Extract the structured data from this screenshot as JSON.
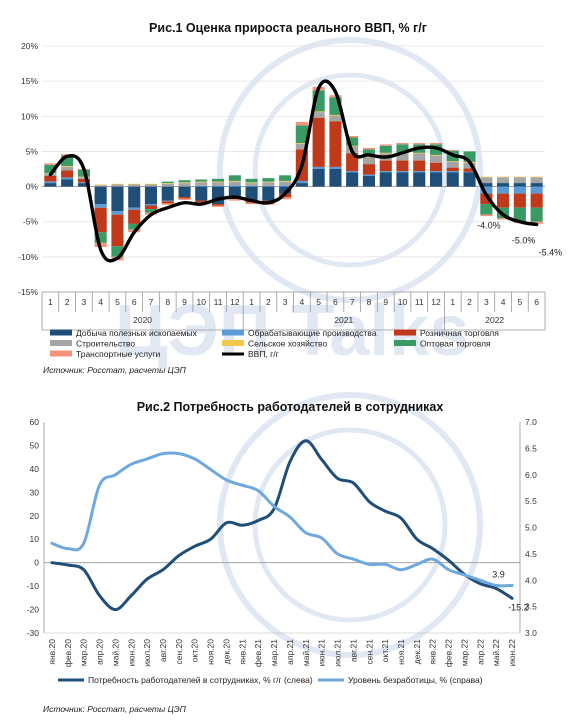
{
  "watermark": {
    "text": "ЦЭП Talks",
    "color": "#c9d6ea"
  },
  "chart_data": [
    {
      "type": "bar",
      "title": "Рис.1 Оценка прироста реального ВВП, % г/г",
      "stacked": true,
      "categories": [
        "1",
        "2",
        "3",
        "4",
        "5",
        "6",
        "7",
        "8",
        "9",
        "10",
        "11",
        "12",
        "1",
        "2",
        "3",
        "4",
        "5",
        "6",
        "7",
        "8",
        "9",
        "10",
        "11",
        "12",
        "1",
        "2",
        "3",
        "4",
        "5",
        "6"
      ],
      "years": [
        {
          "label": "2020",
          "start": 0,
          "end": 11
        },
        {
          "label": "2021",
          "start": 12,
          "end": 23
        },
        {
          "label": "2022",
          "start": 24,
          "end": 29
        }
      ],
      "ylim": [
        -15,
        20
      ],
      "yticks": [
        -15,
        -10,
        -5,
        0,
        5,
        10,
        15,
        20
      ],
      "ytick_labels": [
        "-15%",
        "-10%",
        "-5%",
        "0%",
        "5%",
        "10%",
        "15%",
        "20%"
      ],
      "series": [
        {
          "name": "Добыча полезных ископаемых",
          "color": "#1f4e79",
          "values": [
            0.5,
            1.0,
            0.5,
            -2.5,
            -3.5,
            -3.0,
            -2.5,
            -2.0,
            -1.5,
            -2.0,
            -2.5,
            -1.5,
            -2.0,
            -2.0,
            -1.0,
            0.5,
            2.5,
            2.5,
            2.0,
            1.5,
            2.0,
            2.0,
            2.0,
            2.0,
            2.0,
            2.0,
            0.5,
            0.5,
            0.5,
            0.5
          ]
        },
        {
          "name": "Обрабатывающие производства",
          "color": "#5b9bd5",
          "values": [
            0.2,
            0.3,
            0.1,
            -0.5,
            -0.5,
            -0.3,
            -0.2,
            -0.1,
            0.0,
            0.1,
            0.1,
            0.2,
            0.1,
            0.1,
            0.2,
            0.3,
            0.3,
            0.3,
            0.2,
            0.2,
            0.2,
            0.2,
            0.2,
            0.2,
            0.2,
            0.1,
            -1.0,
            -1.0,
            -1.0,
            -1.0
          ]
        },
        {
          "name": "Розничная торговля",
          "color": "#c0391b",
          "values": [
            0.8,
            1.0,
            0.5,
            -3.5,
            -4.5,
            -2.0,
            -0.5,
            -0.3,
            -0.2,
            -0.2,
            -0.2,
            -0.3,
            -0.3,
            -0.4,
            -0.5,
            4.5,
            7.0,
            6.5,
            2.5,
            1.5,
            1.5,
            1.5,
            1.5,
            1.2,
            0.5,
            0.5,
            -1.5,
            -2.0,
            -2.0,
            -2.0
          ]
        },
        {
          "name": "Строительство",
          "color": "#a5a5a5",
          "values": [
            0.3,
            0.5,
            0.2,
            0.2,
            0.3,
            0.3,
            0.3,
            0.4,
            0.5,
            0.5,
            0.5,
            0.5,
            0.4,
            0.5,
            0.5,
            0.8,
            0.8,
            0.8,
            1.0,
            1.0,
            1.0,
            1.0,
            1.0,
            1.0,
            0.8,
            0.8,
            0.8,
            0.8,
            0.8,
            0.8
          ]
        },
        {
          "name": "Сельское хозяйство",
          "color": "#f2c84b",
          "values": [
            0.1,
            0.1,
            0.1,
            0.1,
            0.1,
            0.1,
            0.1,
            0.1,
            0.1,
            0.1,
            0.1,
            0.1,
            0.1,
            0.1,
            0.1,
            0.1,
            0.1,
            0.1,
            0.1,
            0.1,
            0.1,
            0.1,
            0.1,
            0.1,
            0.1,
            0.1,
            0.1,
            0.1,
            0.1,
            0.1
          ]
        },
        {
          "name": "Оптовая торговля",
          "color": "#3a9a65",
          "values": [
            1.2,
            1.5,
            1.0,
            -1.5,
            -1.5,
            -0.8,
            -0.5,
            0.2,
            0.3,
            0.3,
            0.4,
            0.8,
            0.5,
            0.5,
            0.8,
            2.5,
            3.0,
            2.5,
            1.2,
            1.0,
            1.0,
            1.2,
            1.2,
            1.5,
            1.5,
            1.5,
            -1.5,
            -1.5,
            -2.0,
            -2.0
          ]
        },
        {
          "name": "Транспортные услуги",
          "color": "#f4937a",
          "values": [
            0.2,
            0.2,
            0.1,
            -0.6,
            -0.5,
            -0.4,
            -0.3,
            -0.2,
            -0.2,
            -0.2,
            -0.2,
            -0.2,
            -0.2,
            -0.2,
            -0.3,
            0.5,
            0.5,
            0.3,
            0.2,
            0.2,
            0.2,
            0.2,
            0.2,
            0.2,
            0.1,
            0.0,
            -0.2,
            -0.2,
            -0.2,
            -0.3
          ]
        }
      ],
      "line": {
        "name": "ВВП, г/г",
        "color": "#000000",
        "values": [
          1.7,
          4.3,
          2.5,
          -9.0,
          -10.2,
          -6.5,
          -4.0,
          -3.0,
          -2.3,
          -2.5,
          -1.8,
          -1.5,
          -2.0,
          -2.3,
          -1.0,
          3.0,
          14.0,
          13.5,
          5.0,
          4.5,
          4.2,
          4.8,
          5.5,
          5.5,
          4.5,
          3.5,
          -1.2,
          -4.0,
          -5.0,
          -5.4
        ]
      },
      "annotations": [
        {
          "index": 27,
          "text": "-4.0%"
        },
        {
          "index": 28,
          "text": "-5.0%"
        },
        {
          "index": 29,
          "text": "-5.4%"
        }
      ],
      "source": "Источник: Росстат, расчеты ЦЭП"
    },
    {
      "type": "line",
      "title": "Рис.2 Потребность работодателей в сотрудниках",
      "categories": [
        "янв.20",
        "фев.20",
        "мар.20",
        "апр.20",
        "май.20",
        "июн.20",
        "июл.20",
        "авг.20",
        "сен.20",
        "окт.20",
        "ноя.20",
        "дек.20",
        "янв.21",
        "фев.21",
        "мар.21",
        "апр.21",
        "май.21",
        "июн.21",
        "июл.21",
        "авг.21",
        "сен.21",
        "окт.21",
        "ноя.21",
        "дек.21",
        "янв.22",
        "фев.22",
        "мар.22",
        "апр.22",
        "май.22",
        "июн.22"
      ],
      "ylim_left": [
        -30,
        60
      ],
      "yticks_left": [
        -30,
        -20,
        -10,
        0,
        10,
        20,
        30,
        40,
        50,
        60
      ],
      "ylim_right": [
        3.0,
        7.0
      ],
      "yticks_right": [
        "3.0",
        "3.5",
        "4.0",
        "4.5",
        "5.0",
        "5.5",
        "6.0",
        "6.5",
        "7.0"
      ],
      "series": [
        {
          "name": "Потребность работодателей в сотрудниках, % г/г (слева)",
          "axis": "left",
          "color": "#1f4e79",
          "values": [
            0,
            -1,
            -3,
            -14,
            -20,
            -14,
            -7,
            -3,
            3,
            7,
            10,
            17,
            16,
            18,
            23,
            43,
            52,
            44,
            36,
            34,
            26,
            22,
            19,
            10,
            6,
            1,
            -5,
            -9,
            -11,
            -15.2
          ]
        },
        {
          "name": "Уровень безработицы, % (справа)",
          "axis": "right",
          "color": "#6fa8dc",
          "values": [
            4.7,
            4.6,
            4.7,
            5.8,
            6.0,
            6.2,
            6.3,
            6.4,
            6.4,
            6.3,
            6.1,
            5.9,
            5.8,
            5.7,
            5.4,
            5.2,
            4.9,
            4.8,
            4.5,
            4.4,
            4.3,
            4.3,
            4.2,
            4.3,
            4.4,
            4.2,
            4.1,
            4.0,
            3.9,
            3.9
          ]
        }
      ],
      "annotations": [
        {
          "series": 1,
          "index": 28,
          "text": "3.9"
        },
        {
          "series": 0,
          "index": 29,
          "text": "-15.2"
        }
      ],
      "source": "Источник: Росстат, расчеты ЦЭП"
    }
  ]
}
